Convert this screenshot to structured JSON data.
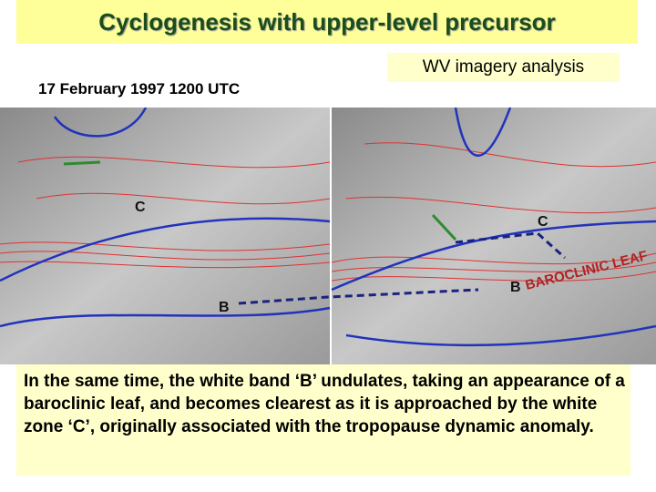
{
  "header": {
    "title": "Cyclogenesis with upper-level precursor"
  },
  "caption": "WV imagery analysis",
  "date": "17 February 1997 1200 UTC",
  "left_image": {
    "labels": [
      "C",
      "B"
    ]
  },
  "right_image": {
    "labels": [
      "C",
      "B",
      "BAROCLINIC LEAF"
    ]
  },
  "body": {
    "text": "In the same time, the white band ‘B’ undulates, taking an appearance of a baroclinic leaf, and becomes clearest as it is approached by the white zone ‘C’, originally associated with the tropopause dynamic anomaly."
  }
}
